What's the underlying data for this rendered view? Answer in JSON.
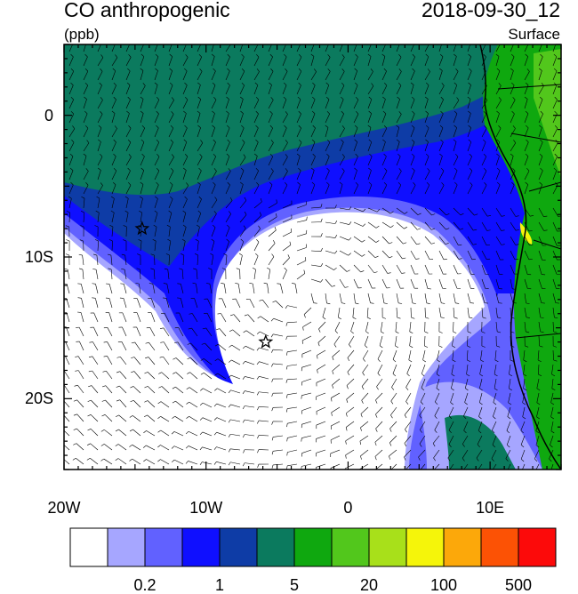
{
  "header": {
    "title": "CO anthropogenic",
    "units": "(ppb)",
    "date": "2018-09-30_12",
    "level": "Surface"
  },
  "map": {
    "lon_range": [
      -20,
      15
    ],
    "lat_range": [
      -25,
      5
    ],
    "y_ticks": [
      {
        "value": 0,
        "label": "0"
      },
      {
        "value": -10,
        "label": "10S"
      },
      {
        "value": -20,
        "label": "20S"
      }
    ],
    "x_ticks": [
      {
        "value": -20,
        "label": "20W"
      },
      {
        "value": -10,
        "label": "10W"
      },
      {
        "value": 0,
        "label": "0"
      },
      {
        "value": 10,
        "label": "10E"
      }
    ],
    "markers": [
      {
        "lon": -14.5,
        "lat": -8.0,
        "symbol": "star"
      },
      {
        "lon": -5.8,
        "lat": -16.0,
        "symbol": "star"
      }
    ]
  },
  "colorbar": {
    "colors": [
      "#ffffff",
      "#a6a6ff",
      "#6161ff",
      "#0f0fff",
      "#0e3ca6",
      "#0b7a5e",
      "#0fa80f",
      "#52c71c",
      "#a8e01a",
      "#f5f50a",
      "#fca80a",
      "#fc5205",
      "#fc0a0a"
    ],
    "labels": [
      {
        "text": "0.2",
        "after_box": 2
      },
      {
        "text": "1",
        "after_box": 4
      },
      {
        "text": "5",
        "after_box": 6
      },
      {
        "text": "20",
        "after_box": 8
      },
      {
        "text": "100",
        "after_box": 10
      },
      {
        "text": "500",
        "after_box": 12
      }
    ]
  }
}
